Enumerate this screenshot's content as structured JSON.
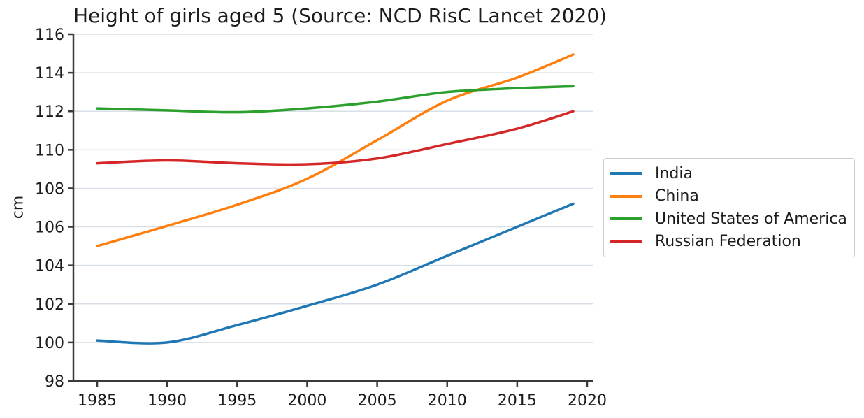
{
  "chart_data": {
    "type": "line",
    "title": "Height of girls aged 5 (Source: NCD RisC Lancet 2020)",
    "xlabel": "",
    "ylabel": "cm",
    "x": [
      1985,
      1990,
      1995,
      2000,
      2005,
      2010,
      2015,
      2019
    ],
    "series": [
      {
        "name": "India",
        "color": "#1f77b4",
        "values": [
          100.1,
          100.0,
          100.9,
          101.9,
          103.0,
          104.5,
          106.0,
          107.2
        ]
      },
      {
        "name": "China",
        "color": "#ff7f0e",
        "values": [
          105.0,
          106.05,
          107.15,
          108.5,
          110.5,
          112.55,
          113.75,
          114.95
        ]
      },
      {
        "name": "United States of America",
        "color": "#2ca02c",
        "values": [
          112.15,
          112.05,
          111.95,
          112.15,
          112.5,
          113.0,
          113.2,
          113.3
        ]
      },
      {
        "name": "Russian Federation",
        "color": "#d62728",
        "values": [
          109.3,
          109.45,
          109.3,
          109.25,
          109.55,
          110.3,
          111.1,
          112.0
        ]
      }
    ],
    "xticks": [
      1985,
      1990,
      1995,
      2000,
      2005,
      2010,
      2015,
      2020
    ],
    "yticks": [
      98,
      100,
      102,
      104,
      106,
      108,
      110,
      112,
      114,
      116
    ],
    "xlim": [
      1983.3,
      2020.4
    ],
    "ylim": [
      98,
      116
    ],
    "grid": "horizontal",
    "legend_position": "outside-right",
    "line_width": 3.5,
    "colors": {
      "grid": "#d8dfe7",
      "spine": "#3a3a3a",
      "tick": "#3a3a3a",
      "text": "#1c1c1c",
      "legend_border": "#cccccc",
      "background": "#ffffff"
    }
  }
}
